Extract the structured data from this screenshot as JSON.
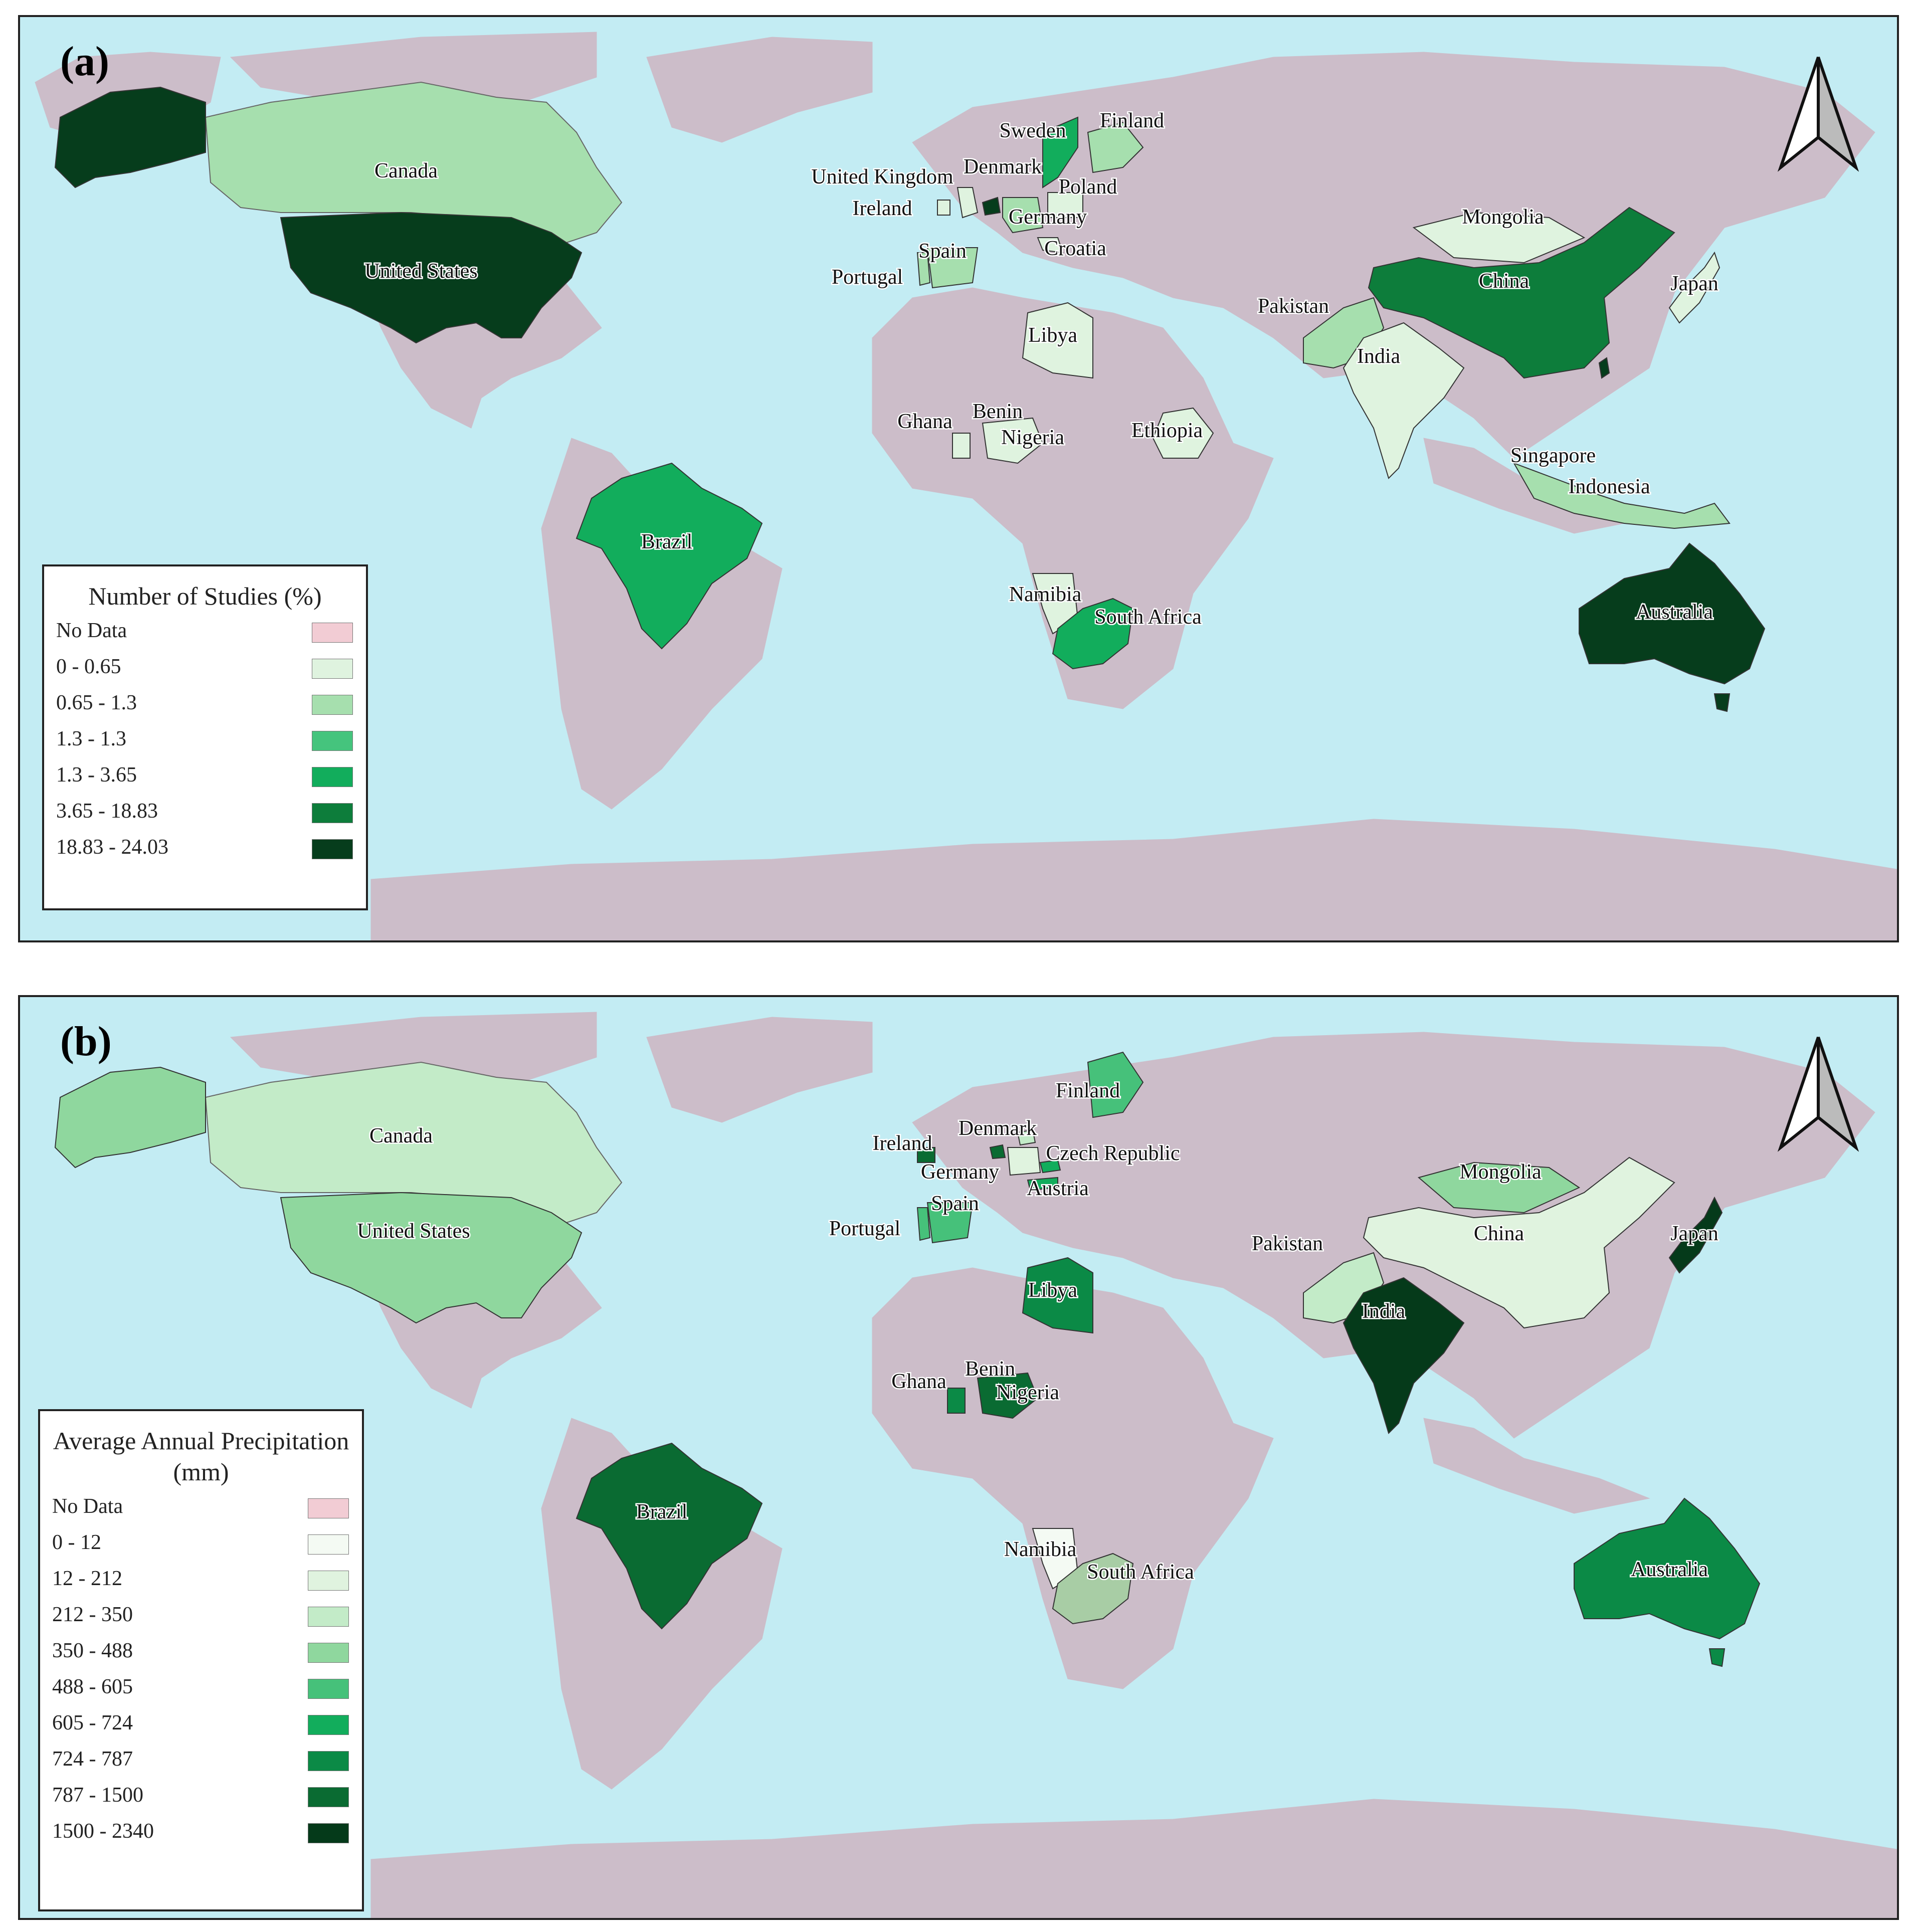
{
  "panels": [
    {
      "letter": "(a)",
      "legend_title": "Number of Studies (%)",
      "legend": [
        {
          "label": "No Data",
          "color": "#f2ccd4"
        },
        {
          "label": "0 - 0.65",
          "color": "#dff3df"
        },
        {
          "label": "0.65 - 1.3",
          "color": "#a6dfae"
        },
        {
          "label": "1.3 - 1.3",
          "color": "#45c47d"
        },
        {
          "label": "1.3 - 3.65",
          "color": "#12ad5c"
        },
        {
          "label": "3.65 - 18.83",
          "color": "#0d7d3b"
        },
        {
          "label": "18.83 - 24.03",
          "color": "#063d1c"
        }
      ],
      "labels": [
        "Canada",
        "United States",
        "Brazil",
        "Sweden",
        "Finland",
        "Denmark",
        "United Kingdom",
        "Poland",
        "Ireland",
        "Germany",
        "Croatia",
        "Spain",
        "Portugal",
        "Mongolia",
        "China",
        "Japan",
        "Pakistan",
        "India",
        "Libya",
        "Ghana",
        "Benin",
        "Nigeria",
        "Ethiopia",
        "Singapore",
        "Indonesia",
        "Australia",
        "Namibia",
        "South Africa"
      ]
    },
    {
      "letter": "(b)",
      "legend_title": "Average Annual Precipitation (mm)",
      "legend": [
        {
          "label": "No Data",
          "color": "#f2ccd4"
        },
        {
          "label": "0 - 12",
          "color": "#f4faf3"
        },
        {
          "label": "12 - 212",
          "color": "#e0f3df"
        },
        {
          "label": "212 - 350",
          "color": "#c3ebc8"
        },
        {
          "label": "350 - 488",
          "color": "#8fd79e"
        },
        {
          "label": "488 - 605",
          "color": "#46c17a"
        },
        {
          "label": "605 - 724",
          "color": "#12ad5c"
        },
        {
          "label": "724 - 787",
          "color": "#0b8a46"
        },
        {
          "label": "787 - 1500",
          "color": "#0a6b32"
        },
        {
          "label": "1500 - 2340",
          "color": "#053a1a"
        }
      ],
      "labels": [
        "Canada",
        "United States",
        "Brazil",
        "Finland",
        "Denmark",
        "Ireland",
        "Czech Republic",
        "Germany",
        "Austria",
        "Spain",
        "Portugal",
        "Mongolia",
        "China",
        "Japan",
        "Pakistan",
        "India",
        "Libya",
        "Ghana",
        "Benin",
        "Nigeria",
        "Namibia",
        "South Africa",
        "Australia"
      ]
    }
  ],
  "colors": {
    "ocean": "#c3ecf3",
    "land_no_data": "#ccbdc9"
  }
}
